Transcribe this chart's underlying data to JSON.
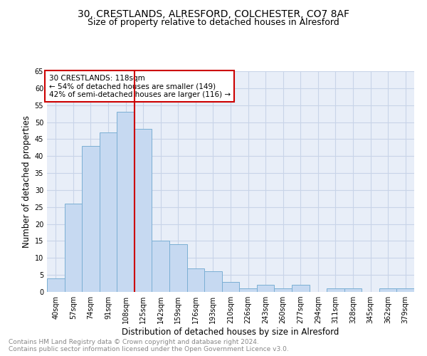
{
  "title": "30, CRESTLANDS, ALRESFORD, COLCHESTER, CO7 8AF",
  "subtitle": "Size of property relative to detached houses in Alresford",
  "xlabel": "Distribution of detached houses by size in Alresford",
  "ylabel": "Number of detached properties",
  "footer_line1": "Contains HM Land Registry data © Crown copyright and database right 2024.",
  "footer_line2": "Contains public sector information licensed under the Open Government Licence v3.0.",
  "bar_labels": [
    "40sqm",
    "57sqm",
    "74sqm",
    "91sqm",
    "108sqm",
    "125sqm",
    "142sqm",
    "159sqm",
    "176sqm",
    "193sqm",
    "210sqm",
    "226sqm",
    "243sqm",
    "260sqm",
    "277sqm",
    "294sqm",
    "311sqm",
    "328sqm",
    "345sqm",
    "362sqm",
    "379sqm"
  ],
  "bar_values": [
    4,
    26,
    43,
    47,
    53,
    48,
    15,
    14,
    7,
    6,
    3,
    1,
    2,
    1,
    2,
    0,
    1,
    1,
    0,
    1,
    1
  ],
  "bar_color": "#c6d9f1",
  "bar_edge_color": "#7bafd4",
  "vline_color": "#cc0000",
  "annotation_text": "30 CRESTLANDS: 118sqm\n← 54% of detached houses are smaller (149)\n42% of semi-detached houses are larger (116) →",
  "annotation_box_color": "#ffffff",
  "annotation_box_edge": "#cc0000",
  "ylim": [
    0,
    65
  ],
  "yticks": [
    0,
    5,
    10,
    15,
    20,
    25,
    30,
    35,
    40,
    45,
    50,
    55,
    60,
    65
  ],
  "grid_color": "#c8d4e8",
  "bg_color": "#e8eef8",
  "title_fontsize": 10,
  "subtitle_fontsize": 9,
  "tick_fontsize": 7,
  "label_fontsize": 8.5,
  "footer_fontsize": 6.5,
  "annot_fontsize": 7.5
}
